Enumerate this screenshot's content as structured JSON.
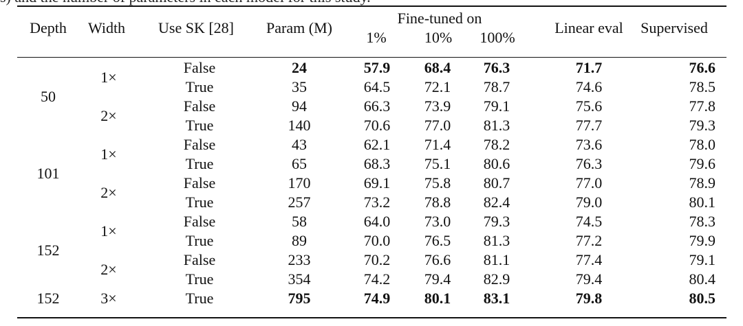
{
  "caption_fragment": "s) and the number of parameters in each model for this study.",
  "table": {
    "headers": {
      "depth": "Depth",
      "width": "Width",
      "use_sk": "Use SK [28]",
      "param": "Param (M)",
      "fine_tuned": "Fine-tuned on",
      "ft_1": "1%",
      "ft_10": "10%",
      "ft_100": "100%",
      "linear": "Linear eval",
      "supervised": "Supervised"
    },
    "depth_labels": [
      "50",
      "101",
      "152",
      "152"
    ],
    "width_labels": [
      "1×",
      "2×",
      "1×",
      "2×",
      "1×",
      "2×",
      "3×"
    ],
    "rows": [
      {
        "use_sk": "False",
        "param": "24",
        "ft1": "57.9",
        "ft10": "68.4",
        "ft100": "76.3",
        "linear": "71.7",
        "supervised": "76.6",
        "bold": true
      },
      {
        "use_sk": "True",
        "param": "35",
        "ft1": "64.5",
        "ft10": "72.1",
        "ft100": "78.7",
        "linear": "74.6",
        "supervised": "78.5",
        "bold": false
      },
      {
        "use_sk": "False",
        "param": "94",
        "ft1": "66.3",
        "ft10": "73.9",
        "ft100": "79.1",
        "linear": "75.6",
        "supervised": "77.8",
        "bold": false
      },
      {
        "use_sk": "True",
        "param": "140",
        "ft1": "70.6",
        "ft10": "77.0",
        "ft100": "81.3",
        "linear": "77.7",
        "supervised": "79.3",
        "bold": false
      },
      {
        "use_sk": "False",
        "param": "43",
        "ft1": "62.1",
        "ft10": "71.4",
        "ft100": "78.2",
        "linear": "73.6",
        "supervised": "78.0",
        "bold": false
      },
      {
        "use_sk": "True",
        "param": "65",
        "ft1": "68.3",
        "ft10": "75.1",
        "ft100": "80.6",
        "linear": "76.3",
        "supervised": "79.6",
        "bold": false
      },
      {
        "use_sk": "False",
        "param": "170",
        "ft1": "69.1",
        "ft10": "75.8",
        "ft100": "80.7",
        "linear": "77.0",
        "supervised": "78.9",
        "bold": false
      },
      {
        "use_sk": "True",
        "param": "257",
        "ft1": "73.2",
        "ft10": "78.8",
        "ft100": "82.4",
        "linear": "79.0",
        "supervised": "80.1",
        "bold": false
      },
      {
        "use_sk": "False",
        "param": "58",
        "ft1": "64.0",
        "ft10": "73.0",
        "ft100": "79.3",
        "linear": "74.5",
        "supervised": "78.3",
        "bold": false
      },
      {
        "use_sk": "True",
        "param": "89",
        "ft1": "70.0",
        "ft10": "76.5",
        "ft100": "81.3",
        "linear": "77.2",
        "supervised": "79.9",
        "bold": false
      },
      {
        "use_sk": "False",
        "param": "233",
        "ft1": "70.2",
        "ft10": "76.6",
        "ft100": "81.1",
        "linear": "77.4",
        "supervised": "79.1",
        "bold": false
      },
      {
        "use_sk": "True",
        "param": "354",
        "ft1": "74.2",
        "ft10": "79.4",
        "ft100": "82.9",
        "linear": "79.4",
        "supervised": "80.4",
        "bold": false
      },
      {
        "use_sk": "True",
        "param": "795",
        "ft1": "74.9",
        "ft10": "80.1",
        "ft100": "83.1",
        "linear": "79.8",
        "supervised": "80.5",
        "bold": true
      }
    ]
  }
}
